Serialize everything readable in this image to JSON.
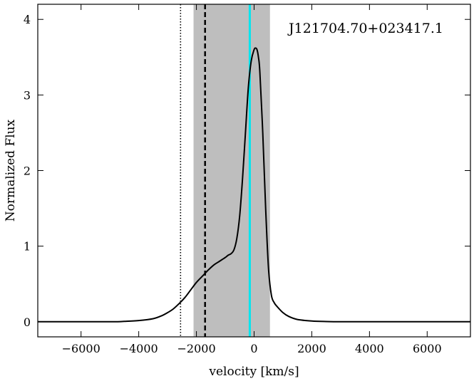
{
  "chart_data": {
    "type": "line",
    "annotation": "J121704.70+023417.1",
    "xlabel": "velocity [km/s]",
    "ylabel": "Normalized Flux",
    "xlim": [
      -7500,
      7500
    ],
    "ylim": [
      -0.2,
      4.2
    ],
    "xticks": [
      -6000,
      -4000,
      -2000,
      0,
      2000,
      4000,
      6000
    ],
    "xtick_labels": [
      "−6000",
      "−4000",
      "−2000",
      "0",
      "2000",
      "4000",
      "6000"
    ],
    "yticks": [
      0,
      1,
      2,
      3,
      4
    ],
    "ytick_labels": [
      "0",
      "1",
      "2",
      "3",
      "4"
    ],
    "grid": false,
    "shaded_region": {
      "x0": -2100,
      "x1": 550,
      "color": "#bebebe"
    },
    "vertical_lines": [
      {
        "x": -2550,
        "style": "dotted",
        "color": "#000000"
      },
      {
        "x": -1700,
        "style": "dashed",
        "color": "#000000"
      },
      {
        "x": -150,
        "style": "solid",
        "color": "#00e5ee"
      }
    ],
    "series": [
      {
        "color": "#000000",
        "x": [
          -7500,
          -5000,
          -4500,
          -4000,
          -3500,
          -3200,
          -3000,
          -2800,
          -2600,
          -2400,
          -2200,
          -2000,
          -1800,
          -1600,
          -1400,
          -1200,
          -1000,
          -900,
          -800,
          -700,
          -600,
          -500,
          -400,
          -300,
          -200,
          -100,
          0,
          50,
          100,
          150,
          200,
          300,
          400,
          500,
          600,
          700,
          800,
          1000,
          1200,
          1500,
          2000,
          2500,
          3000,
          4000,
          7500
        ],
        "y": [
          0,
          0,
          0.005,
          0.015,
          0.04,
          0.08,
          0.12,
          0.17,
          0.24,
          0.32,
          0.42,
          0.52,
          0.6,
          0.68,
          0.75,
          0.8,
          0.85,
          0.88,
          0.9,
          0.95,
          1.1,
          1.4,
          1.9,
          2.5,
          3.1,
          3.45,
          3.6,
          3.62,
          3.6,
          3.5,
          3.3,
          2.5,
          1.5,
          0.7,
          0.35,
          0.25,
          0.2,
          0.12,
          0.07,
          0.03,
          0.01,
          0.003,
          0,
          0,
          0
        ]
      }
    ]
  }
}
